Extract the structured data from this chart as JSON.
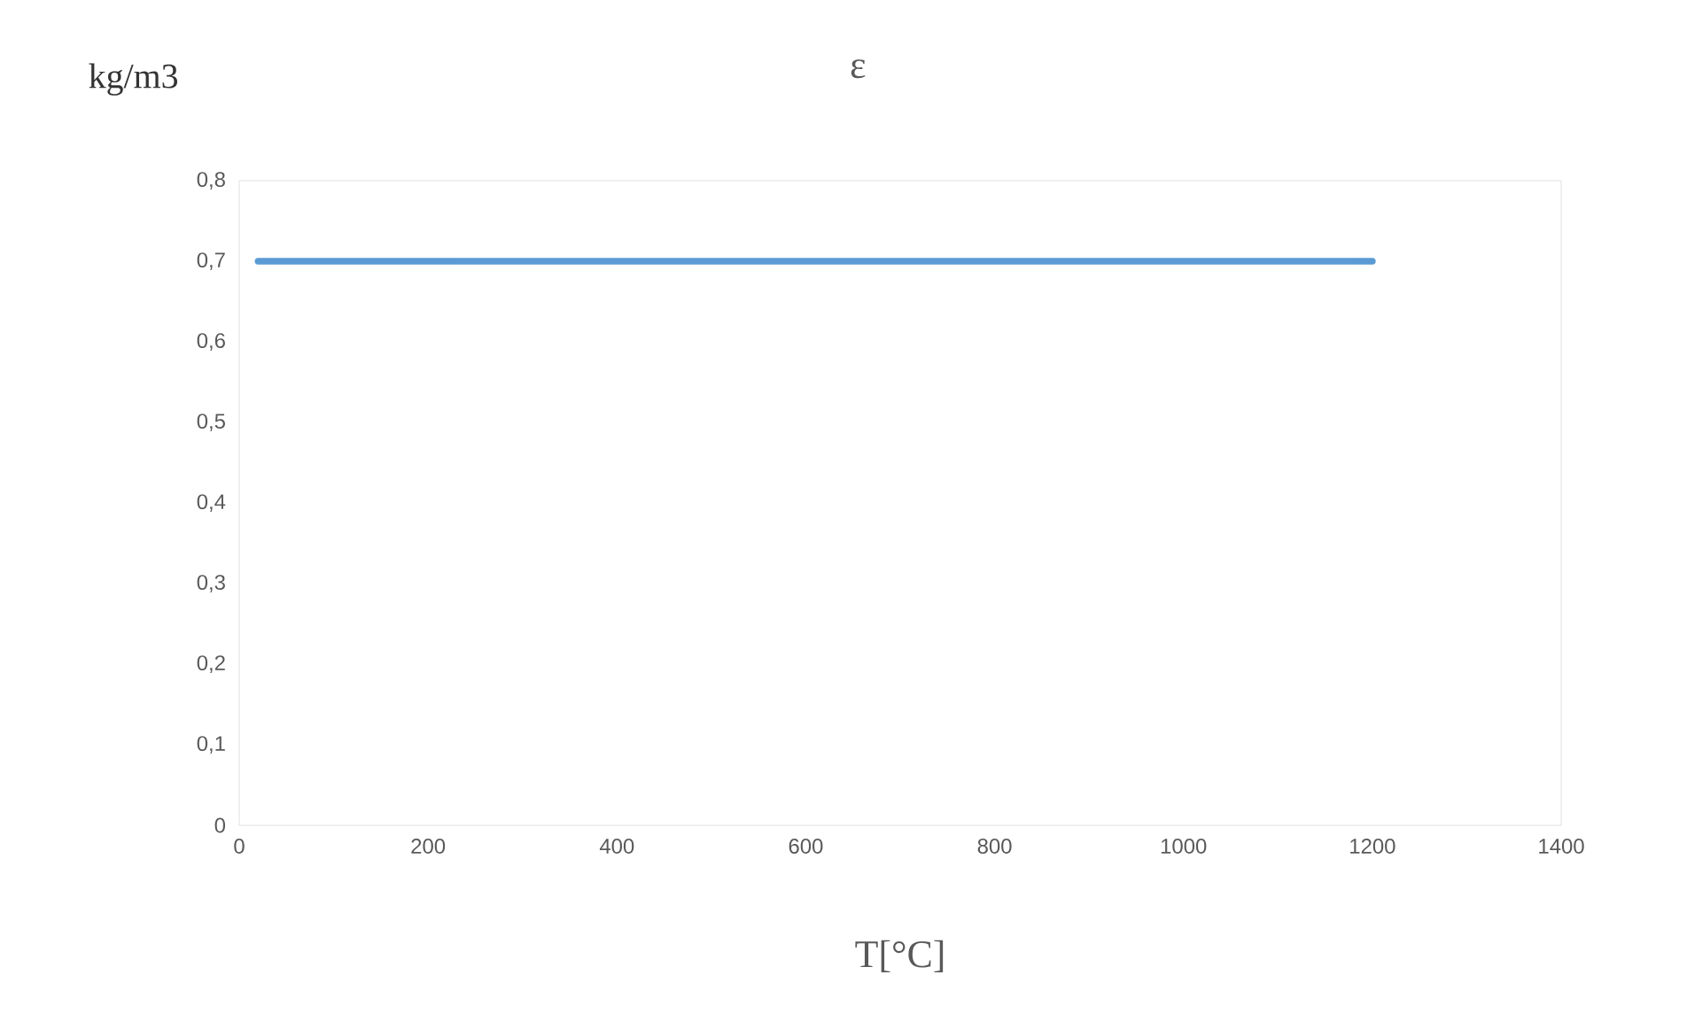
{
  "chart_data": {
    "type": "line",
    "title": "ε",
    "xlabel": "T[°C]",
    "ylabel": "kg/m3",
    "x": [
      20,
      1200
    ],
    "series": [
      {
        "color": "#5b9bd5",
        "values": [
          0.7,
          0.7
        ]
      }
    ],
    "xlim": [
      0,
      1400
    ],
    "xticks": [
      0,
      200,
      400,
      600,
      800,
      1000,
      1200,
      1400
    ],
    "ylim": [
      0,
      0.8
    ],
    "yticks": [
      0,
      {
        "value": 0.1,
        "label": "0,1"
      },
      {
        "value": 0.2,
        "label": "0,2"
      },
      {
        "value": 0.3,
        "label": "0,3"
      },
      {
        "value": 0.4,
        "label": "0,4"
      },
      {
        "value": 0.5,
        "label": "0,5"
      },
      {
        "value": 0.6,
        "label": "0,6"
      },
      {
        "value": 0.7,
        "label": "0,7"
      },
      {
        "value": 0.8,
        "label": "0,8"
      }
    ]
  }
}
